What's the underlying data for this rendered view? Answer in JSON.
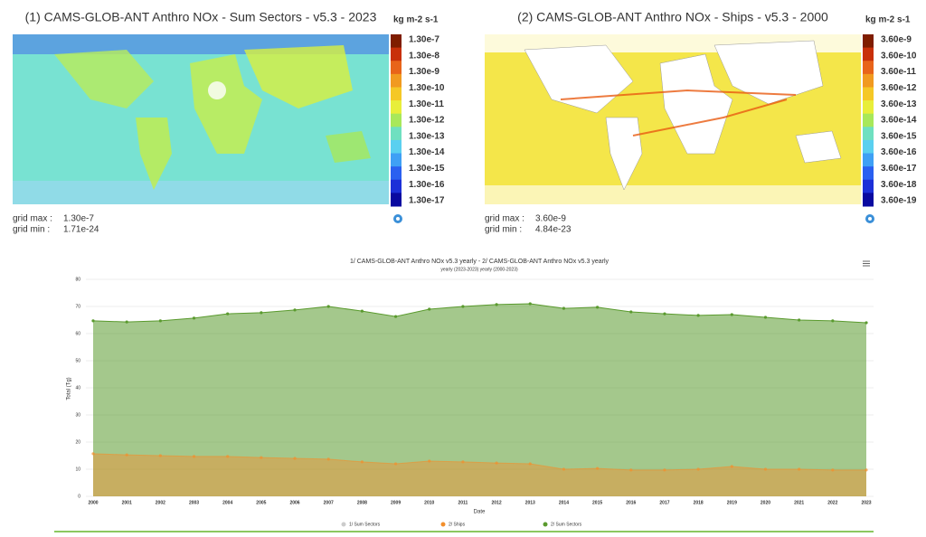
{
  "maps": [
    {
      "title": "(1) CAMS-GLOB-ANT Anthro NOx - Sum Sectors - v5.3 - 2023",
      "unit": "kg m-2 s-1",
      "colorbar_labels": [
        "1.30e-7",
        "1.30e-8",
        "1.30e-9",
        "1.30e-10",
        "1.30e-11",
        "1.30e-12",
        "1.30e-13",
        "1.30e-14",
        "1.30e-15",
        "1.30e-16",
        "1.30e-17"
      ],
      "colorbar_colors": [
        "#7f1d00",
        "#c8300a",
        "#e8641a",
        "#f19a20",
        "#f5c826",
        "#e8ee3a",
        "#a8e85a",
        "#6fe0c0",
        "#5ad0f0",
        "#3fa0f5",
        "#2a60f0",
        "#1c30d8",
        "#0a0aa0"
      ],
      "grid_max_label": "grid max :",
      "grid_max": "1.30e-7",
      "grid_min_label": "grid min :",
      "grid_min": "1.71e-24"
    },
    {
      "title": "(2) CAMS-GLOB-ANT Anthro NOx - Ships - v5.3 - 2000",
      "unit": "kg m-2 s-1",
      "colorbar_labels": [
        "3.60e-9",
        "3.60e-10",
        "3.60e-11",
        "3.60e-12",
        "3.60e-13",
        "3.60e-14",
        "3.60e-15",
        "3.60e-16",
        "3.60e-17",
        "3.60e-18",
        "3.60e-19"
      ],
      "colorbar_colors": [
        "#7f1d00",
        "#c8300a",
        "#e8641a",
        "#f19a20",
        "#f5c826",
        "#e8ee3a",
        "#a8e85a",
        "#6fe0c0",
        "#5ad0f0",
        "#3fa0f5",
        "#2a60f0",
        "#1c30d8",
        "#0a0aa0"
      ],
      "grid_max_label": "grid max :",
      "grid_max": "3.60e-9",
      "grid_min_label": "grid min :",
      "grid_min": "4.84e-23"
    }
  ],
  "chart_data": {
    "type": "area",
    "title": "1/ CAMS-GLOB-ANT Anthro NOx v5.3 yearly - 2/ CAMS-GLOB-ANT Anthro NOx v5.3 yearly",
    "subtitle": "yearly (2023-2023) yearly (2000-2023)",
    "y_label": "Total (Tg)",
    "x_label": "Date",
    "categories": [
      "2000",
      "2001",
      "2002",
      "2003",
      "2004",
      "2005",
      "2006",
      "2007",
      "2008",
      "2009",
      "2010",
      "2011",
      "2012",
      "2013",
      "2014",
      "2015",
      "2016",
      "2017",
      "2018",
      "2019",
      "2020",
      "2021",
      "2022",
      "2023"
    ],
    "series": [
      {
        "name": "1/ Sum Sectors",
        "color": "#cccccc",
        "visible": false
      },
      {
        "name": "2/ Ships",
        "color": "#f28f2c",
        "visible": true,
        "values": [
          15.7,
          15.3,
          15,
          14.7,
          14.7,
          14.3,
          14,
          13.7,
          12.7,
          12,
          13,
          12.7,
          12.3,
          12,
          10,
          10.3,
          9.7,
          9.7,
          10,
          11,
          10,
          10,
          9.7,
          9.7
        ]
      },
      {
        "name": "2/ Sum Sectors",
        "color": "#5a9a2e",
        "visible": true,
        "values": [
          64.7,
          64.3,
          64.7,
          65.7,
          67.3,
          67.7,
          68.7,
          70,
          68.3,
          66.3,
          69,
          70,
          70.7,
          71,
          69.3,
          69.7,
          68,
          67.3,
          66.7,
          67,
          66,
          65,
          64.7,
          64
        ]
      }
    ],
    "ylim": [
      0,
      80
    ],
    "yticks": [
      0,
      10,
      20,
      30,
      40,
      50,
      60,
      70,
      80
    ],
    "grid": true
  }
}
